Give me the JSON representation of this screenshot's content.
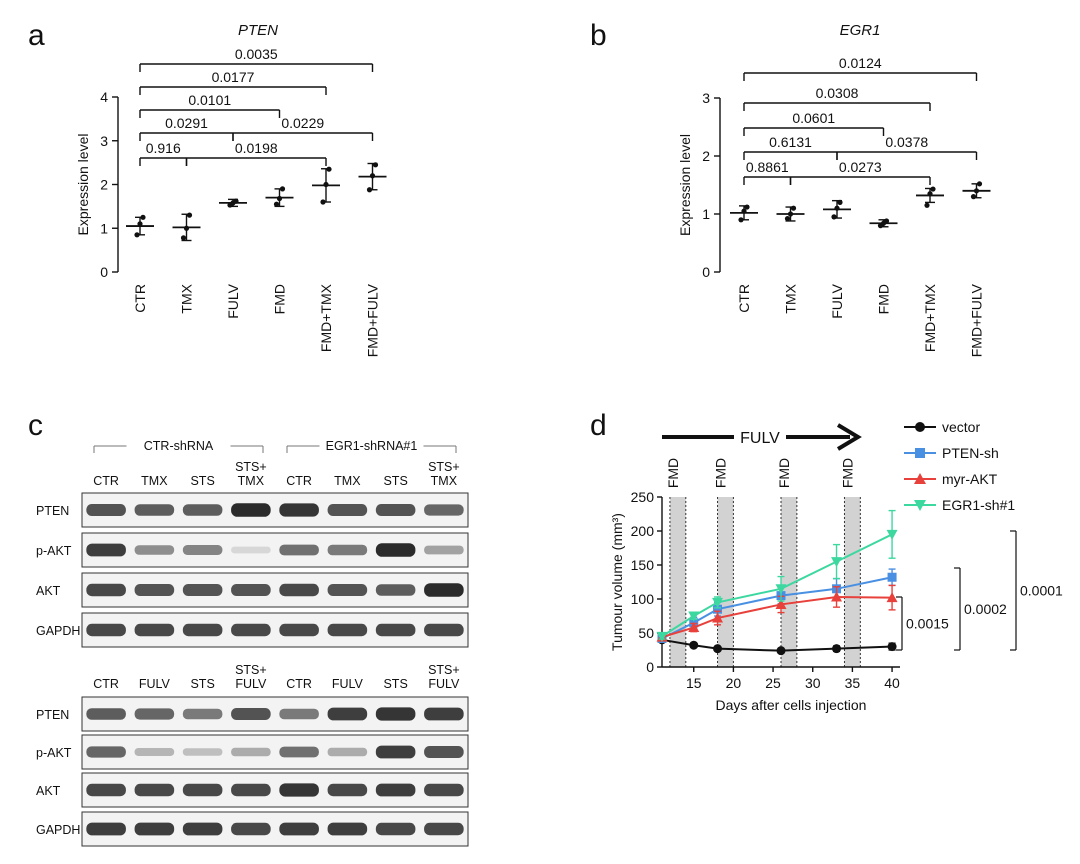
{
  "panels": {
    "a": {
      "letter": "a"
    },
    "b": {
      "letter": "b"
    },
    "c": {
      "letter": "c"
    },
    "d": {
      "letter": "d"
    }
  },
  "chart_data": [
    {
      "id": "a",
      "type": "scatter",
      "title": "PTEN",
      "ylabel": "Expression level",
      "xlabel": "",
      "ylim": [
        0,
        4
      ],
      "yticks": [
        0,
        1,
        2,
        3,
        4
      ],
      "categories": [
        "CTR",
        "TMX",
        "FULV",
        "FMD",
        "FMD+TMX",
        "FMD+FULV"
      ],
      "means": [
        1.05,
        1.02,
        1.58,
        1.7,
        1.98,
        2.18
      ],
      "errors": [
        0.2,
        0.3,
        0.08,
        0.2,
        0.38,
        0.3
      ],
      "points": [
        [
          0.85,
          1.1,
          1.25
        ],
        [
          0.78,
          1.0,
          1.3
        ],
        [
          1.53,
          1.58,
          1.62
        ],
        [
          1.55,
          1.68,
          1.9
        ],
        [
          1.6,
          2.0,
          2.35
        ],
        [
          1.88,
          2.2,
          2.45
        ]
      ],
      "comparisons": [
        {
          "a": 0,
          "b": 1,
          "p": "0.916"
        },
        {
          "a": 1,
          "b": 4,
          "p": "0.0198"
        },
        {
          "a": 0,
          "b": 2,
          "p": "0.0291"
        },
        {
          "a": 2,
          "b": 5,
          "p": "0.0229"
        },
        {
          "a": 0,
          "b": 3,
          "p": "0.0101"
        },
        {
          "a": 0,
          "b": 4,
          "p": "0.0177"
        },
        {
          "a": 0,
          "b": 5,
          "p": "0.0035"
        }
      ]
    },
    {
      "id": "b",
      "type": "scatter",
      "title": "EGR1",
      "ylabel": "Expression level",
      "xlabel": "",
      "ylim": [
        0,
        3
      ],
      "yticks": [
        0,
        1,
        2,
        3
      ],
      "categories": [
        "CTR",
        "TMX",
        "FULV",
        "FMD",
        "FMD+TMX",
        "FMD+FULV"
      ],
      "means": [
        1.02,
        1.0,
        1.08,
        0.84,
        1.32,
        1.4
      ],
      "errors": [
        0.12,
        0.12,
        0.15,
        0.06,
        0.12,
        0.12
      ],
      "points": [
        [
          0.9,
          1.05,
          1.12
        ],
        [
          0.92,
          1.0,
          1.1
        ],
        [
          0.95,
          1.1,
          1.2
        ],
        [
          0.8,
          0.84,
          0.88
        ],
        [
          1.15,
          1.35,
          1.43
        ],
        [
          1.3,
          1.4,
          1.52
        ]
      ],
      "comparisons": [
        {
          "a": 0,
          "b": 1,
          "p": "0.8861"
        },
        {
          "a": 1,
          "b": 4,
          "p": "0.0273"
        },
        {
          "a": 0,
          "b": 2,
          "p": "0.6131"
        },
        {
          "a": 2,
          "b": 5,
          "p": "0.0378"
        },
        {
          "a": 0,
          "b": 3,
          "p": "0.0601"
        },
        {
          "a": 0,
          "b": 4,
          "p": "0.0308"
        },
        {
          "a": 0,
          "b": 5,
          "p": "0.0124"
        }
      ]
    },
    {
      "id": "c",
      "type": "table",
      "blots": [
        {
          "group_labels": [
            "CTR-shRNA",
            "EGR1-shRNA#1"
          ],
          "lanes": [
            "CTR",
            "TMX",
            "STS",
            "STS+\nTMX",
            "CTR",
            "TMX",
            "STS",
            "STS+\nTMX"
          ],
          "rows": [
            {
              "label": "PTEN",
              "intensity": [
                0.75,
                0.7,
                0.7,
                0.95,
                0.9,
                0.75,
                0.75,
                0.65
              ]
            },
            {
              "label": "p-AKT",
              "intensity": [
                0.85,
                0.45,
                0.5,
                0.08,
                0.6,
                0.55,
                0.95,
                0.35
              ]
            },
            {
              "label": "AKT",
              "intensity": [
                0.8,
                0.75,
                0.75,
                0.75,
                0.8,
                0.75,
                0.7,
                0.95
              ]
            },
            {
              "label": "GAPDH",
              "intensity": [
                0.8,
                0.8,
                0.8,
                0.8,
                0.8,
                0.8,
                0.8,
                0.8
              ]
            }
          ]
        },
        {
          "group_labels": [],
          "lanes": [
            "CTR",
            "FULV",
            "STS",
            "STS+\nFULV",
            "CTR",
            "FULV",
            "STS",
            "STS+\nFULV"
          ],
          "rows": [
            {
              "label": "PTEN",
              "intensity": [
                0.7,
                0.65,
                0.55,
                0.75,
                0.55,
                0.85,
                0.9,
                0.85
              ]
            },
            {
              "label": "p-AKT",
              "intensity": [
                0.65,
                0.25,
                0.2,
                0.3,
                0.6,
                0.3,
                0.85,
                0.75
              ]
            },
            {
              "label": "AKT",
              "intensity": [
                0.8,
                0.8,
                0.8,
                0.8,
                0.9,
                0.8,
                0.85,
                0.8
              ]
            },
            {
              "label": "GAPDH",
              "intensity": [
                0.85,
                0.85,
                0.85,
                0.8,
                0.85,
                0.85,
                0.8,
                0.8
              ]
            }
          ]
        }
      ]
    },
    {
      "id": "d",
      "type": "line",
      "title": "",
      "xlabel": "Days after cells injection",
      "ylabel": "Tumour volume (mm³)",
      "xlim": [
        11,
        41
      ],
      "ylim": [
        0,
        250
      ],
      "xticks": [
        15,
        20,
        25,
        30,
        35,
        40
      ],
      "yticks": [
        0,
        50,
        100,
        150,
        200,
        250
      ],
      "arrow_label": "FULV",
      "fmd_label": "FMD",
      "fmd_windows": [
        [
          12,
          14
        ],
        [
          18,
          20
        ],
        [
          26,
          28
        ],
        [
          34,
          36
        ]
      ],
      "x": [
        11,
        15,
        18,
        26,
        33,
        40
      ],
      "series": [
        {
          "name": "vector",
          "color": "#111111",
          "marker": "circle",
          "values": [
            40,
            32,
            27,
            24,
            27,
            30
          ],
          "err": [
            3,
            3,
            3,
            3,
            4,
            5
          ]
        },
        {
          "name": "PTEN-sh",
          "color": "#4a90e2",
          "marker": "square",
          "values": [
            42,
            65,
            85,
            105,
            115,
            132
          ],
          "err": [
            4,
            8,
            10,
            12,
            15,
            12
          ]
        },
        {
          "name": "myr-AKT",
          "color": "#e8413b",
          "marker": "triangle-up",
          "values": [
            44,
            58,
            72,
            92,
            103,
            102
          ],
          "err": [
            4,
            6,
            10,
            12,
            15,
            18
          ]
        },
        {
          "name": "EGR1-sh#1",
          "color": "#3dd8a0",
          "marker": "triangle-down",
          "values": [
            45,
            75,
            95,
            115,
            155,
            195
          ],
          "err": [
            4,
            5,
            8,
            18,
            25,
            35
          ]
        }
      ],
      "significance": [
        {
          "value": "0.0015"
        },
        {
          "value": "0.0002"
        },
        {
          "value": "0.0001"
        }
      ]
    }
  ]
}
